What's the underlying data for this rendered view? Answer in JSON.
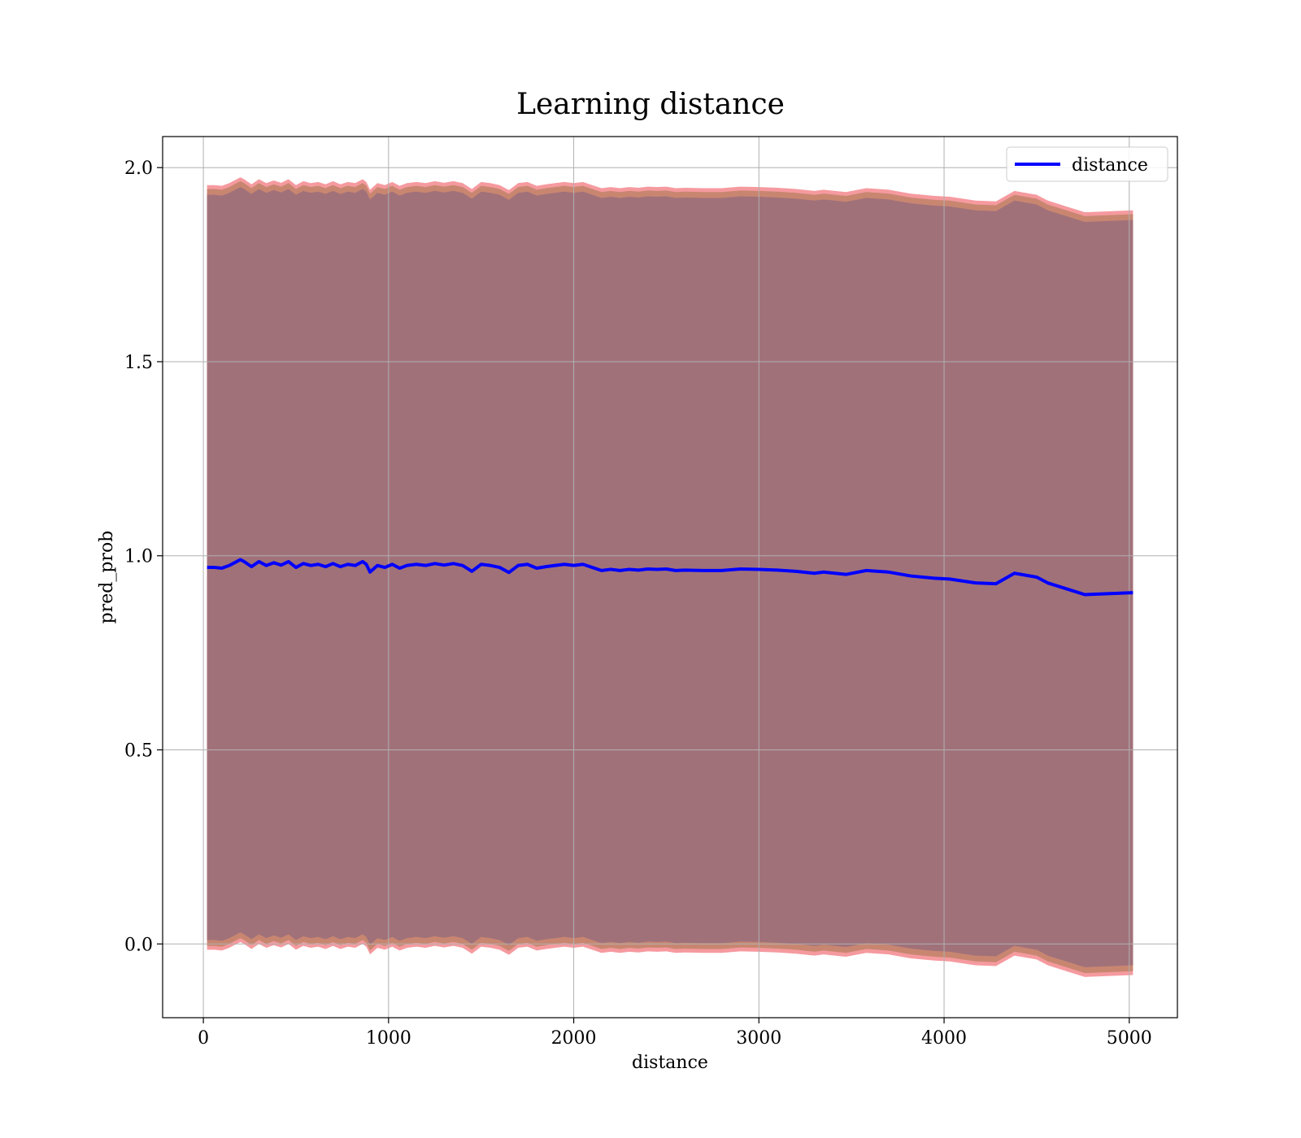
{
  "chart_data": {
    "type": "line",
    "title": "Learning distance",
    "xlabel": "distance",
    "ylabel": "pred_prob",
    "xlim": [
      -220,
      5260
    ],
    "ylim": [
      -0.19,
      2.08
    ],
    "xticks": [
      0,
      1000,
      2000,
      3000,
      4000,
      5000
    ],
    "xtick_labels": [
      "0",
      "1000",
      "2000",
      "3000",
      "4000",
      "5000"
    ],
    "yticks": [
      0.0,
      0.5,
      1.0,
      1.5,
      2.0
    ],
    "ytick_labels": [
      "0.0",
      "0.5",
      "1.0",
      "1.5",
      "2.0"
    ],
    "grid": true,
    "legend": {
      "placement": "top-right",
      "entries": [
        "distance"
      ]
    },
    "colors": {
      "line": "#0000ff",
      "band_inner": "#a1717a",
      "band_mid": "#c88670",
      "band_outer": "#f59a9f",
      "grid": "#b0b0b0"
    },
    "series": [
      {
        "name": "distance",
        "x": [
          20,
          60,
          100,
          140,
          180,
          200,
          220,
          260,
          300,
          340,
          380,
          420,
          460,
          500,
          540,
          580,
          620,
          660,
          700,
          740,
          780,
          820,
          860,
          880,
          900,
          940,
          980,
          1020,
          1060,
          1100,
          1150,
          1200,
          1250,
          1300,
          1350,
          1400,
          1450,
          1500,
          1550,
          1600,
          1650,
          1700,
          1750,
          1800,
          1850,
          1900,
          1950,
          2000,
          2050,
          2100,
          2150,
          2200,
          2250,
          2300,
          2350,
          2400,
          2450,
          2500,
          2550,
          2600,
          2700,
          2800,
          2900,
          3000,
          3100,
          3200,
          3300,
          3350,
          3470,
          3580,
          3700,
          3820,
          3950,
          4030,
          4170,
          4280,
          4380,
          4500,
          4560,
          4660,
          4760,
          5020
        ],
        "y": [
          0.97,
          0.97,
          0.968,
          0.975,
          0.985,
          0.99,
          0.985,
          0.972,
          0.985,
          0.975,
          0.982,
          0.976,
          0.985,
          0.97,
          0.98,
          0.975,
          0.978,
          0.972,
          0.98,
          0.972,
          0.978,
          0.975,
          0.985,
          0.978,
          0.958,
          0.975,
          0.97,
          0.978,
          0.968,
          0.975,
          0.978,
          0.975,
          0.98,
          0.976,
          0.98,
          0.975,
          0.96,
          0.978,
          0.975,
          0.97,
          0.957,
          0.975,
          0.978,
          0.968,
          0.972,
          0.975,
          0.978,
          0.975,
          0.978,
          0.97,
          0.962,
          0.965,
          0.962,
          0.965,
          0.963,
          0.966,
          0.965,
          0.966,
          0.962,
          0.963,
          0.962,
          0.962,
          0.966,
          0.965,
          0.963,
          0.96,
          0.955,
          0.958,
          0.952,
          0.962,
          0.958,
          0.948,
          0.942,
          0.94,
          0.93,
          0.928,
          0.955,
          0.945,
          0.93,
          0.915,
          0.9,
          0.905
        ]
      }
    ],
    "band_half_widths": {
      "inner": 0.96,
      "mid": 0.975,
      "outer": 0.985
    }
  }
}
